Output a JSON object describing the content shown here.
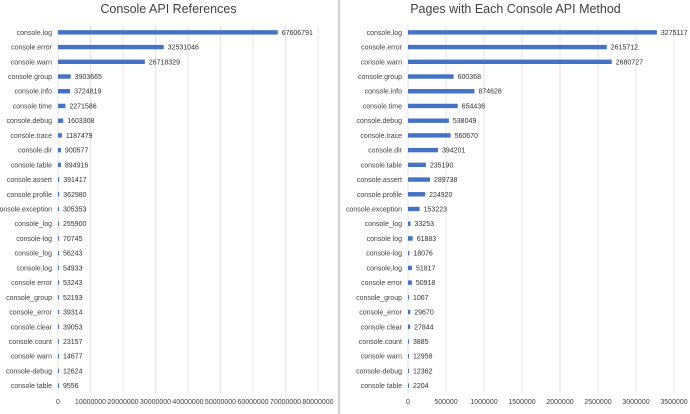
{
  "chart_data": [
    {
      "type": "bar",
      "orientation": "horizontal",
      "title": "Console API References",
      "xlim": [
        0,
        80000000
      ],
      "ticks": [
        "0",
        "10000000",
        "20000000",
        "30000000",
        "40000000",
        "50000000",
        "60000000",
        "70000000",
        "80000000"
      ],
      "grid": true,
      "bar_color": "#4472c4",
      "categories": [
        "console.log",
        "console.error",
        "console.warn",
        "console.group",
        "console.info",
        "console.time",
        "console.debug",
        "console.trace",
        "console.dir",
        "console.table",
        "console.assert",
        "console.profile",
        "console.exception",
        "console_log",
        "console-log",
        "console_log",
        "console,log",
        "console error",
        "console_group",
        "console_error",
        "console.clear",
        "console.count",
        "console warn",
        "console-debug",
        "console table"
      ],
      "values": [
        67606791,
        32531046,
        26718329,
        3903665,
        3724819,
        2271586,
        1603308,
        1187479,
        900577,
        894916,
        391417,
        362980,
        305353,
        255900,
        70745,
        56243,
        54933,
        53243,
        52193,
        39314,
        39053,
        23157,
        14677,
        12624,
        9556
      ]
    },
    {
      "type": "bar",
      "orientation": "horizontal",
      "title": "Pages with Each Console API Method",
      "xlim": [
        0,
        3500000
      ],
      "ticks": [
        "0",
        "500000",
        "1000000",
        "1500000",
        "2000000",
        "2500000",
        "3000000",
        "3500000"
      ],
      "grid": true,
      "bar_color": "#4472c4",
      "categories": [
        "console.log",
        "console.error",
        "console.warn",
        "console.group",
        "console.info",
        "console.time",
        "console.debug",
        "console.trace",
        "console.dir",
        "console.table",
        "console.assert",
        "console.profile",
        "console.exception",
        "console_log",
        "console log",
        "console-log",
        "console,log",
        "console error",
        "console_group",
        "console_error",
        "console.clear",
        "console.count",
        "console warn",
        "console-debug",
        "console table"
      ],
      "values": [
        3275117,
        2615712,
        2680727,
        600368,
        874628,
        654436,
        538049,
        560670,
        394201,
        235190,
        289738,
        224920,
        153223,
        33253,
        61883,
        18076,
        51817,
        50918,
        1067,
        29670,
        27844,
        3885,
        12958,
        12362,
        2204
      ]
    }
  ]
}
